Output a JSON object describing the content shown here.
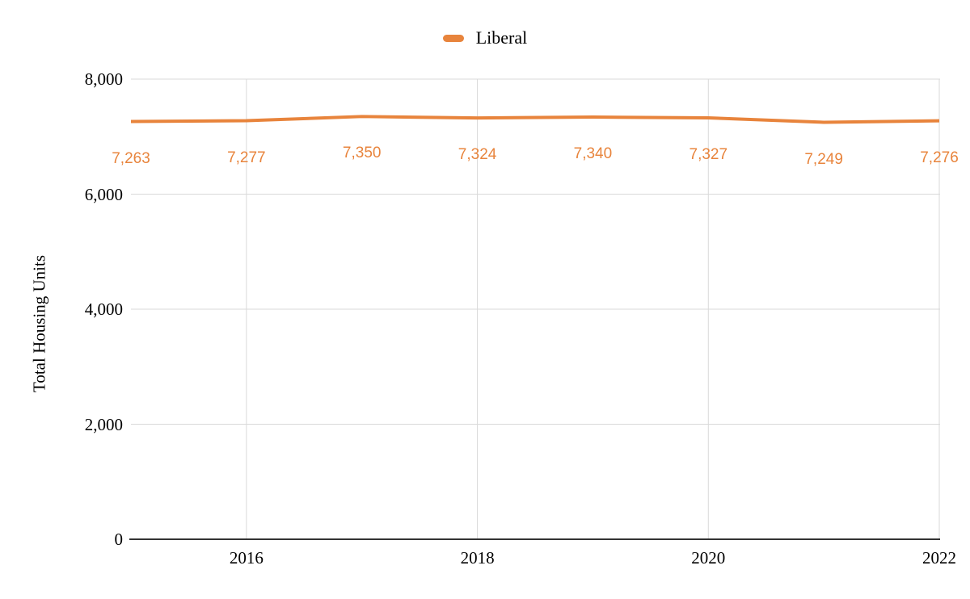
{
  "legend": {
    "label": "Liberal"
  },
  "colors": {
    "line": "#E8843C",
    "data_label": "#E8843C",
    "gridline": "#D9D9D9",
    "axis": "#333333",
    "text": "#000000",
    "background": "#FFFFFF"
  },
  "chart_data": {
    "type": "line",
    "title": "",
    "xlabel": "",
    "ylabel": "Total Housing Units",
    "x": [
      2015,
      2016,
      2017,
      2018,
      2019,
      2020,
      2021,
      2022
    ],
    "series": [
      {
        "name": "Liberal",
        "color": "#E8843C",
        "x": [
          2015,
          2016,
          2017,
          2018,
          2019,
          2020,
          2021,
          2022
        ],
        "values": [
          7263,
          7277,
          7350,
          7324,
          7340,
          7327,
          7249,
          7276
        ],
        "data_labels": [
          "7,263",
          "7,277",
          "7,350",
          "7,324",
          "7,340",
          "7,327",
          "7,249",
          "7,276"
        ]
      }
    ],
    "xlim": [
      2015,
      2022
    ],
    "ylim": [
      0,
      8000
    ],
    "yticks": [
      0,
      2000,
      4000,
      6000,
      8000
    ],
    "ytick_labels": [
      "0",
      "2,000",
      "4,000",
      "6,000",
      "8,000"
    ],
    "xticks": [
      2016,
      2018,
      2020,
      2022
    ],
    "xtick_labels": [
      "2016",
      "2018",
      "2020",
      "2022"
    ],
    "grid": true,
    "legend_position": "top"
  }
}
